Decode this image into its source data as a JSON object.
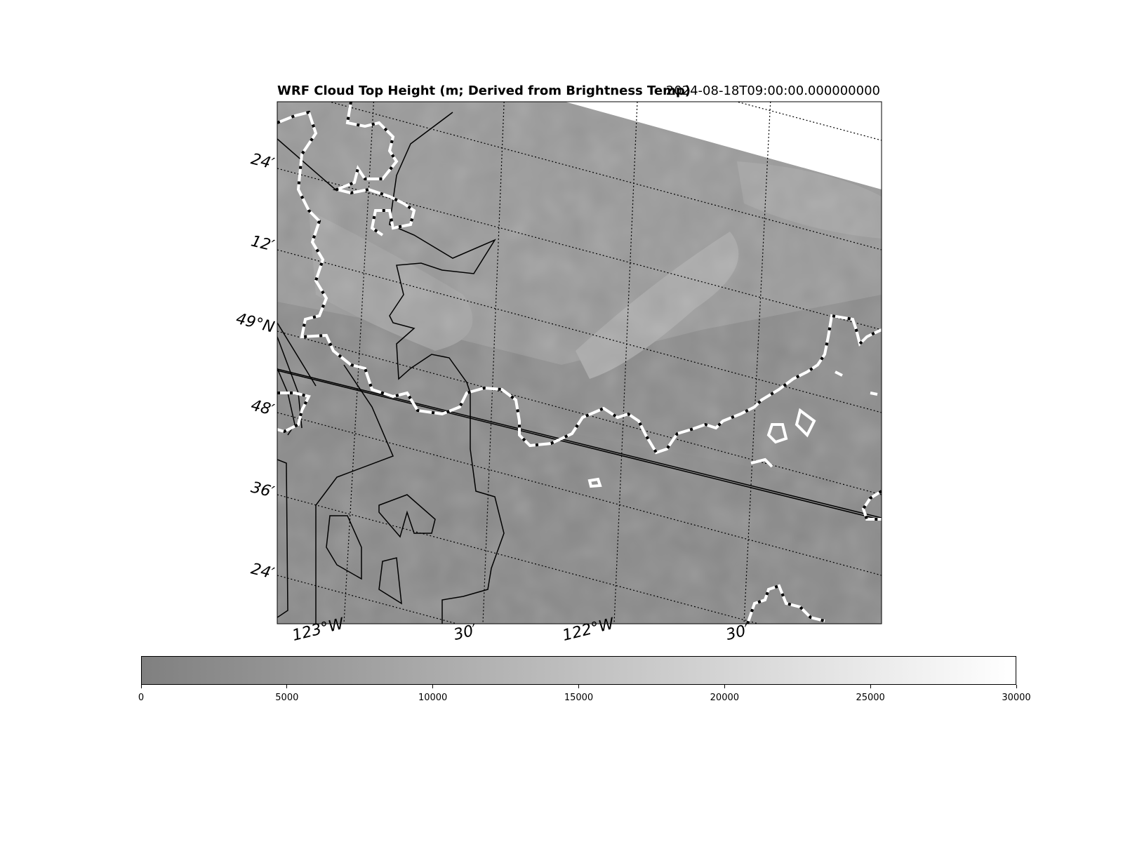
{
  "header": {
    "title": "WRF Cloud Top Height (m; Derived from Brightness Temp)",
    "timestamp": "2024-08-18T09:00:00.000000000"
  },
  "map": {
    "latitude_labels": [
      "24′",
      "12′",
      "49°N",
      "48′",
      "36′",
      "24′"
    ],
    "longitude_labels": [
      "123°W",
      "30′",
      "122°W",
      "30′"
    ],
    "fill_color_range": [
      "#808080",
      "#ffffff"
    ],
    "coastline_style": "black-white dashed",
    "border_style": "solid black"
  },
  "colorbar": {
    "range": [
      0,
      30000
    ],
    "ticks": [
      "0",
      "5000",
      "10000",
      "15000",
      "20000",
      "25000",
      "30000"
    ],
    "colors": [
      "#808080",
      "#ffffff"
    ]
  }
}
